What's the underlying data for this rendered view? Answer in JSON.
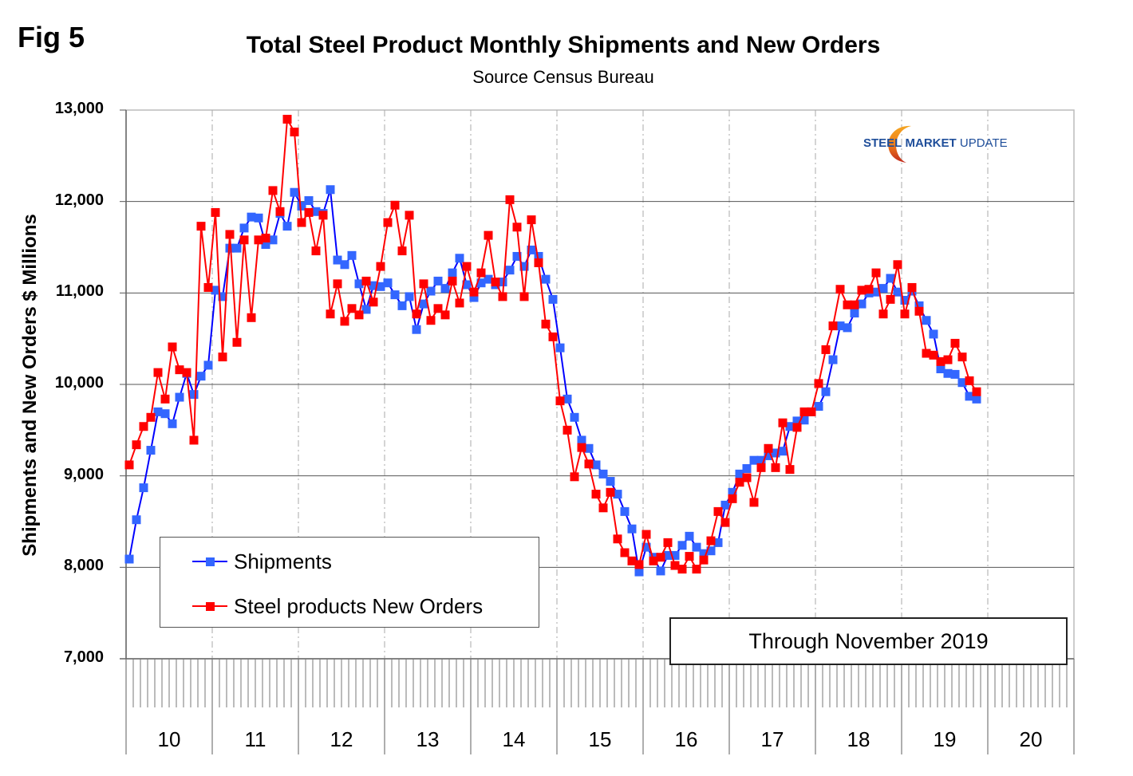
{
  "figure_label": "Fig 5",
  "logo": {
    "bold": "STEEL",
    "mid": "MARKET",
    "light": "UPDATE"
  },
  "note": "Through November 2019",
  "colors": {
    "shipments_line": "#0000ff",
    "shipments_marker": "#3366ff",
    "orders_line": "#ff0000",
    "orders_marker": "#ff0000",
    "logo_blue": "#1f4e9a",
    "logo_orange": "#f07f1a"
  },
  "chart_data": {
    "type": "line",
    "title": "Total Steel Product Monthly Shipments and New Orders",
    "subtitle": "Source Census Bureau",
    "xlabel": "",
    "ylabel": "Shipments and New Orders $ Millions",
    "ylim": [
      7000,
      13000
    ],
    "yticks": [
      "13,000",
      "12,000",
      "11,000",
      "10,000",
      "9,000",
      "8,000",
      "7,000"
    ],
    "ytick_values": [
      13000,
      12000,
      11000,
      10000,
      9000,
      8000,
      7000
    ],
    "x_categories": [
      "10",
      "11",
      "12",
      "13",
      "14",
      "15",
      "16",
      "17",
      "18",
      "19",
      "20"
    ],
    "x_unit": "monthly, starting January 2010",
    "grid": "horizontal major lines; vertical dashed year separators",
    "legend_position": "bottom-left",
    "series": [
      {
        "name": "Shipments",
        "values": [
          8090,
          8520,
          8870,
          9280,
          9700,
          9680,
          9570,
          9860,
          10120,
          9890,
          10090,
          10210,
          11030,
          10960,
          11490,
          11490,
          11710,
          11830,
          11820,
          11530,
          11580,
          11870,
          11730,
          12100,
          11950,
          12010,
          11890,
          11870,
          12130,
          11360,
          11310,
          11410,
          11100,
          10820,
          11080,
          11070,
          11110,
          10980,
          10860,
          10960,
          10600,
          10880,
          11020,
          11130,
          11050,
          11220,
          11380,
          11090,
          10950,
          11110,
          11150,
          11090,
          11120,
          11250,
          11400,
          11290,
          11470,
          11400,
          11150,
          10930,
          10400,
          9840,
          9640,
          9390,
          9300,
          9120,
          9020,
          8940,
          8800,
          8610,
          8420,
          7950,
          8220,
          8110,
          7960,
          8130,
          8130,
          8240,
          8340,
          8220,
          8150,
          8180,
          8270,
          8680,
          8820,
          9020,
          9080,
          9170,
          9170,
          9220,
          9250,
          9270,
          9540,
          9600,
          9610,
          9700,
          9760,
          9920,
          10270,
          10640,
          10620,
          10780,
          10880,
          11000,
          11010,
          11050,
          11160,
          11010,
          10920,
          11020,
          10860,
          10700,
          10550,
          10170,
          10120,
          10110,
          10020,
          9870,
          9840
        ]
      },
      {
        "name": "Steel products New Orders",
        "values": [
          9120,
          9340,
          9540,
          9640,
          10130,
          9840,
          10410,
          10160,
          10130,
          9390,
          11730,
          11060,
          11880,
          10300,
          11640,
          10460,
          11580,
          10730,
          11580,
          11600,
          12120,
          11890,
          12900,
          12760,
          11770,
          11880,
          11460,
          11850,
          10770,
          11100,
          10690,
          10830,
          10760,
          11130,
          10900,
          11290,
          11770,
          11960,
          11460,
          11850,
          10770,
          11100,
          10700,
          10830,
          10760,
          11130,
          10890,
          11290,
          11010,
          11220,
          11630,
          11120,
          10960,
          12020,
          11720,
          10960,
          11800,
          11330,
          10660,
          10520,
          9820,
          9500,
          8990,
          9310,
          9130,
          8800,
          8650,
          8820,
          8310,
          8160,
          8070,
          8030,
          8360,
          8070,
          8110,
          8270,
          8020,
          7980,
          8120,
          7980,
          8080,
          8290,
          8610,
          8490,
          8750,
          8930,
          8980,
          8710,
          9090,
          9300,
          9090,
          9580,
          9070,
          9530,
          9700,
          9700,
          10010,
          10380,
          10640,
          11040,
          10870,
          10870,
          11030,
          11040,
          11220,
          10770,
          10930,
          11310,
          10770,
          11060,
          10800,
          10340,
          10320,
          10250,
          10270,
          10450,
          10300,
          10040,
          9920
        ]
      }
    ]
  }
}
